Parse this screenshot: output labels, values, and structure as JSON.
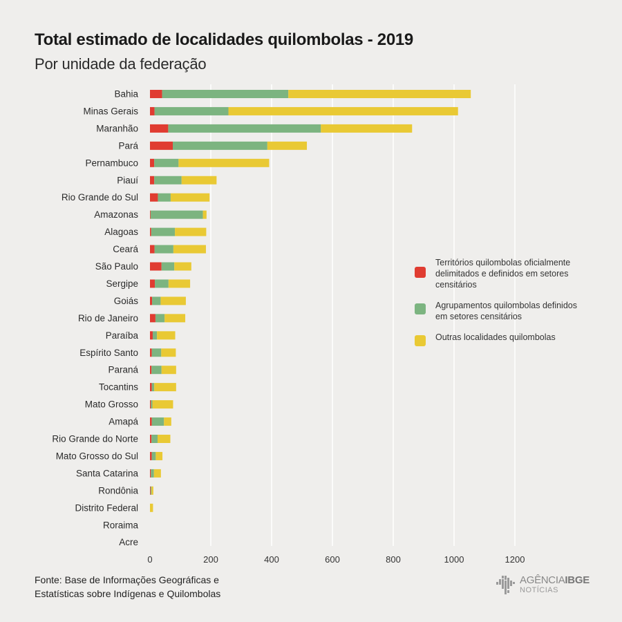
{
  "header": {
    "title": "Total estimado de localidades quilombolas - 2019",
    "subtitle": "Por unidade da federação"
  },
  "legend": {
    "items": [
      {
        "label": "Territórios quilombolas oficialmente delimitados e definidos em setores censitários",
        "color": "#e03c31"
      },
      {
        "label": "Agrupamentos quilombolas definidos em setores censitários",
        "color": "#7cb480"
      },
      {
        "label": "Outras localidades quilombolas",
        "color": "#e9c934"
      }
    ]
  },
  "footer": {
    "source_line1": "Fonte: Base de Informações Geográficas e",
    "source_line2": "Estatísticas sobre Indígenas e Quilombolas",
    "logo_main": "AGÊNCIA",
    "logo_bold": "IBGE",
    "logo_sub": "NOTÍCIAS"
  },
  "chart_data": {
    "type": "bar",
    "orientation": "horizontal",
    "stacked": true,
    "title": "Total estimado de localidades quilombolas - 2019",
    "subtitle": "Por unidade da federação",
    "xlim": [
      0,
      1200
    ],
    "xticks": [
      0,
      200,
      400,
      600,
      800,
      1000,
      1200
    ],
    "grid": true,
    "legend_position": "right",
    "categories": [
      "Bahia",
      "Minas Gerais",
      "Maranhão",
      "Pará",
      "Pernambuco",
      "Piauí",
      "Rio Grande do Sul",
      "Amazonas",
      "Alagoas",
      "Ceará",
      "São Paulo",
      "Sergipe",
      "Goiás",
      "Rio de Janeiro",
      "Paraíba",
      "Espírito Santo",
      "Paraná",
      "Tocantins",
      "Mato Grosso",
      "Amapá",
      "Rio Grande do Norte",
      "Mato Grosso do Sul",
      "Santa Catarina",
      "Rondônia",
      "Distrito Federal",
      "Roraima",
      "Acre"
    ],
    "series": [
      {
        "name": "Territórios quilombolas oficialmente delimitados e definidos em setores censitários",
        "color": "#e03c31",
        "values": [
          40,
          15,
          60,
          75,
          14,
          14,
          26,
          2,
          4,
          15,
          38,
          16,
          7,
          18,
          9,
          6,
          5,
          6,
          3,
          6,
          5,
          6,
          3,
          2,
          0,
          0,
          0
        ]
      },
      {
        "name": "Agrupamentos quilombolas definidos em setores censitários",
        "color": "#7cb480",
        "values": [
          415,
          243,
          502,
          311,
          80,
          90,
          42,
          172,
          78,
          62,
          42,
          45,
          28,
          30,
          14,
          31,
          33,
          8,
          5,
          40,
          20,
          13,
          10,
          3,
          0,
          0,
          0
        ]
      },
      {
        "name": "Outras localidades quilombolas",
        "color": "#e9c934",
        "values": [
          600,
          755,
          300,
          130,
          298,
          115,
          128,
          12,
          103,
          107,
          56,
          71,
          83,
          68,
          60,
          48,
          48,
          72,
          68,
          24,
          42,
          22,
          23,
          6,
          10,
          0,
          0
        ]
      }
    ]
  }
}
